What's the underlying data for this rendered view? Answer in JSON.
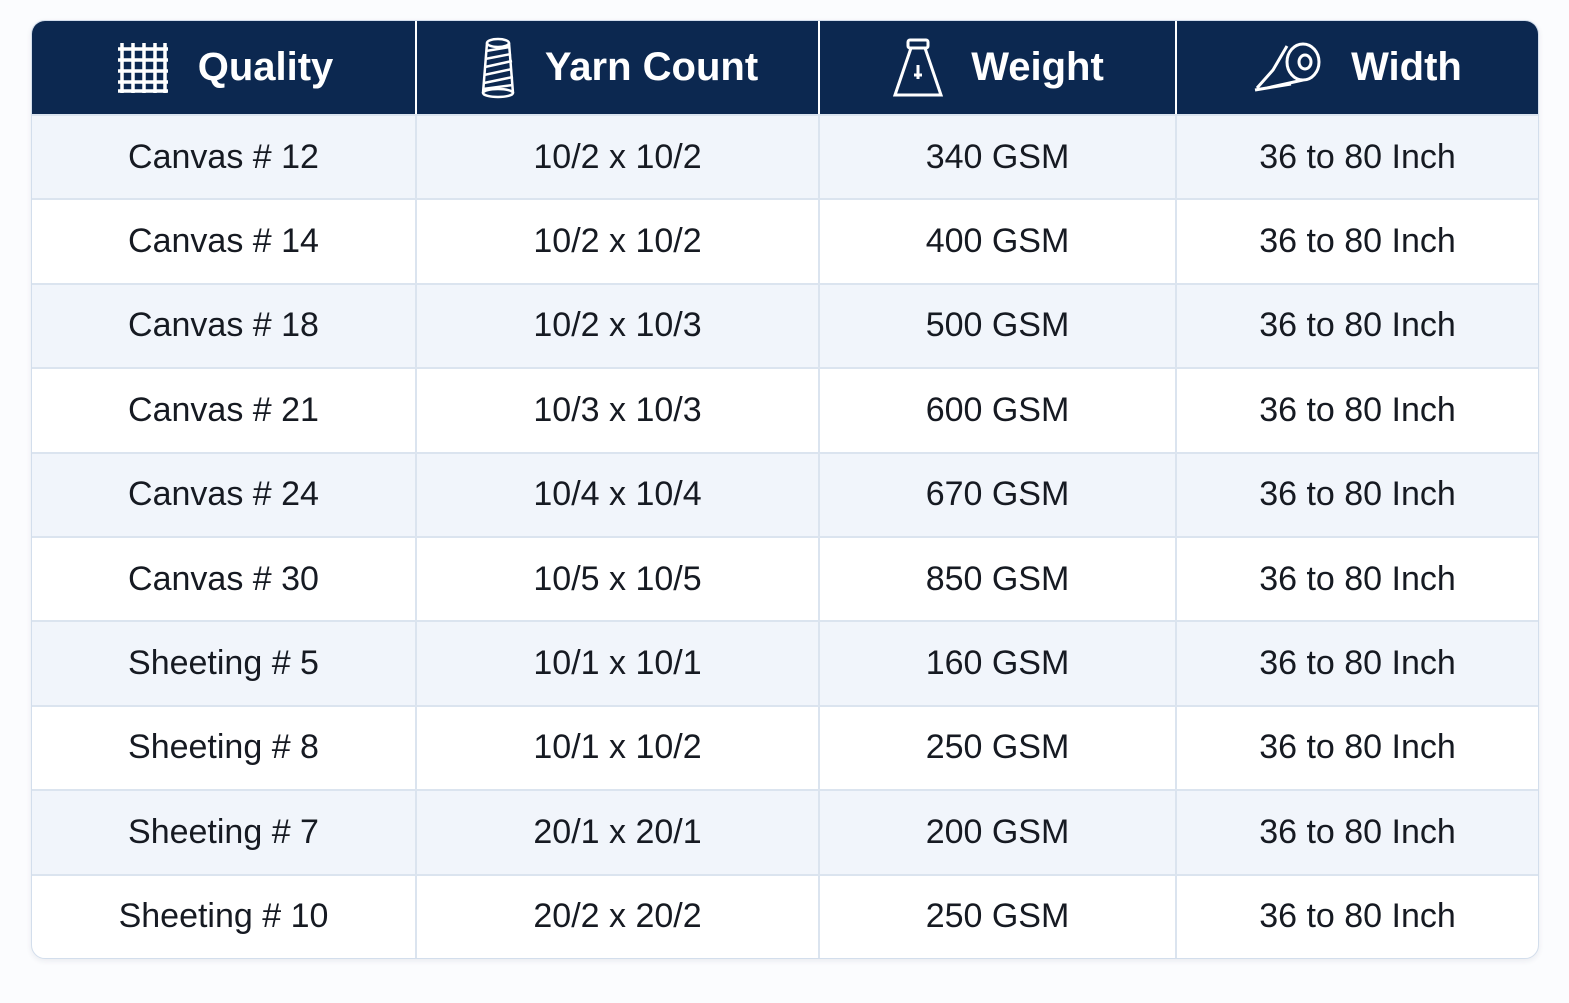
{
  "table": {
    "columns": [
      "Quality",
      "Yarn Count",
      "Weight",
      "Width"
    ],
    "rows": [
      [
        "Canvas # 12",
        "10/2 x 10/2",
        "340 GSM",
        "36 to 80 Inch"
      ],
      [
        "Canvas # 14",
        "10/2 x 10/2",
        "400 GSM",
        "36 to 80 Inch"
      ],
      [
        "Canvas # 18",
        "10/2 x 10/3",
        "500 GSM",
        "36 to 80 Inch"
      ],
      [
        "Canvas # 21",
        "10/3 x 10/3",
        "600 GSM",
        "36 to 80 Inch"
      ],
      [
        "Canvas # 24",
        "10/4 x 10/4",
        "670 GSM",
        "36 to 80 Inch"
      ],
      [
        "Canvas # 30",
        "10/5 x 10/5",
        "850 GSM",
        "36 to 80 Inch"
      ],
      [
        "Sheeting # 5",
        "10/1 x 10/1",
        "160 GSM",
        "36 to 80 Inch"
      ],
      [
        "Sheeting # 8",
        "10/1 x 10/2",
        "250 GSM",
        "36 to 80 Inch"
      ],
      [
        "Sheeting # 7",
        "20/1 x 20/1",
        "200 GSM",
        "36 to 80 Inch"
      ],
      [
        "Sheeting # 10",
        "20/2 x 20/2",
        "250 GSM",
        "36 to 80 Inch"
      ]
    ]
  }
}
